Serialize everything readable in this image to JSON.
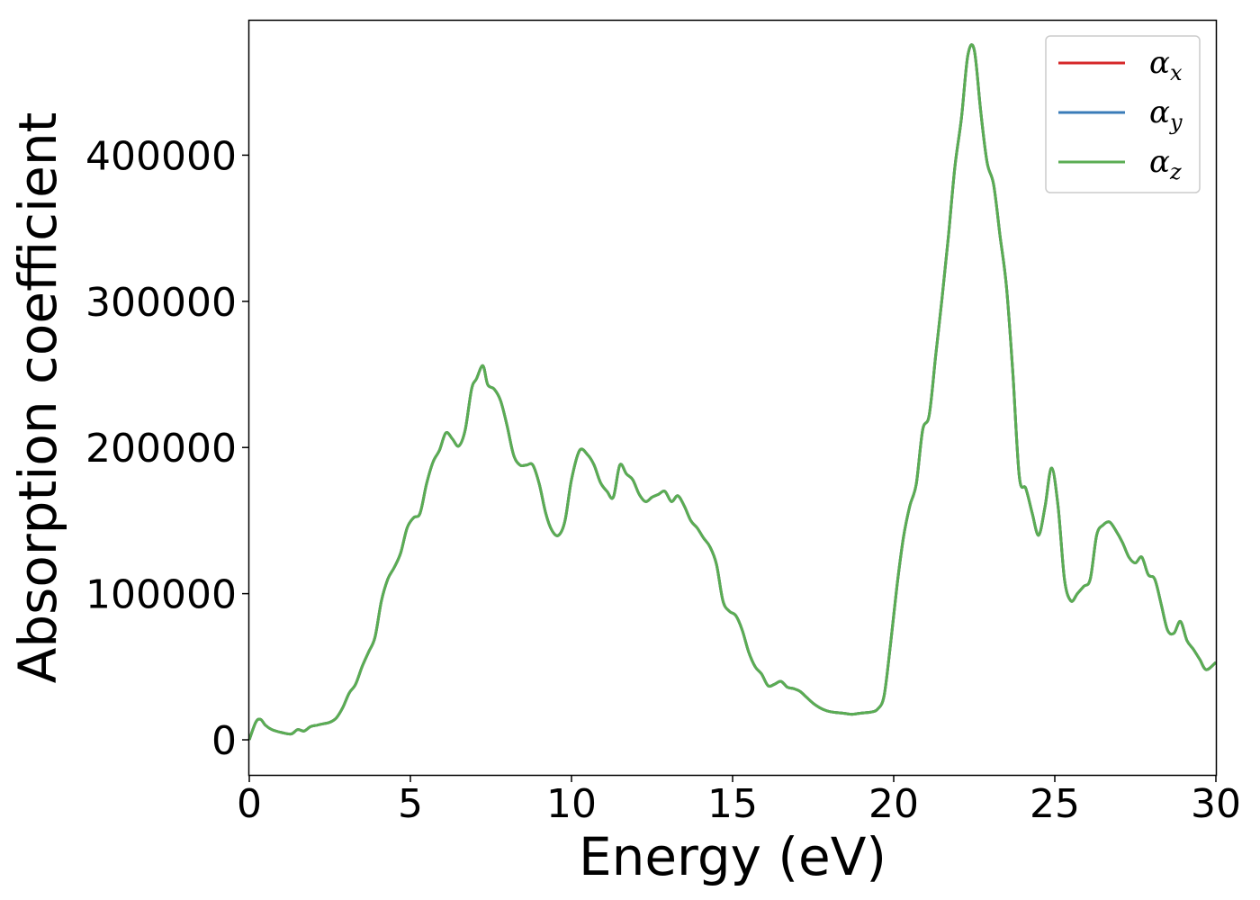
{
  "chart_data": {
    "type": "line",
    "title": "",
    "xlabel": "Energy (eV)",
    "ylabel": "Absorption coefficient",
    "xlim": [
      0,
      30
    ],
    "ylim": [
      -24000,
      492000
    ],
    "xticks": [
      0,
      5,
      10,
      15,
      20,
      25,
      30
    ],
    "yticks": [
      0,
      100000,
      200000,
      300000,
      400000
    ],
    "grid": false,
    "legend_position": "top-right",
    "colors": {
      "alpha_x": "#d62728",
      "alpha_y": "#3a7cb8",
      "alpha_z": "#5aad53"
    },
    "x": [
      0,
      0.2,
      0.35,
      0.5,
      0.7,
      1.0,
      1.3,
      1.5,
      1.7,
      1.9,
      2.1,
      2.3,
      2.5,
      2.7,
      2.9,
      3.1,
      3.3,
      3.5,
      3.7,
      3.9,
      4.1,
      4.3,
      4.5,
      4.7,
      4.9,
      5.1,
      5.3,
      5.5,
      5.7,
      5.9,
      6.1,
      6.3,
      6.5,
      6.7,
      6.9,
      7.05,
      7.25,
      7.4,
      7.6,
      7.8,
      8.0,
      8.2,
      8.4,
      8.6,
      8.8,
      9.0,
      9.2,
      9.4,
      9.6,
      9.8,
      10.0,
      10.25,
      10.5,
      10.7,
      10.9,
      11.1,
      11.3,
      11.5,
      11.7,
      11.9,
      12.1,
      12.3,
      12.5,
      12.7,
      12.9,
      13.1,
      13.3,
      13.5,
      13.7,
      13.9,
      14.1,
      14.3,
      14.5,
      14.7,
      14.9,
      15.1,
      15.3,
      15.5,
      15.7,
      15.9,
      16.1,
      16.3,
      16.5,
      16.7,
      16.9,
      17.1,
      17.3,
      17.5,
      17.7,
      17.9,
      18.1,
      18.3,
      18.5,
      18.7,
      18.9,
      19.1,
      19.3,
      19.5,
      19.7,
      19.9,
      20.1,
      20.3,
      20.5,
      20.7,
      20.9,
      21.1,
      21.3,
      21.5,
      21.7,
      21.9,
      22.1,
      22.3,
      22.5,
      22.7,
      22.9,
      23.1,
      23.3,
      23.5,
      23.7,
      23.9,
      24.1,
      24.3,
      24.5,
      24.7,
      24.9,
      25.1,
      25.3,
      25.5,
      25.7,
      25.9,
      26.1,
      26.3,
      26.5,
      26.7,
      26.9,
      27.1,
      27.3,
      27.5,
      27.7,
      27.9,
      28.1,
      28.3,
      28.5,
      28.7,
      28.9,
      29.1,
      29.3,
      29.5,
      29.7,
      30.0
    ],
    "series": [
      {
        "name": "αx",
        "symbol": "α",
        "sub": "x",
        "color": "#d62728",
        "values": [
          0,
          12000,
          14000,
          10000,
          7000,
          5000,
          4000,
          7000,
          6000,
          9000,
          10000,
          11000,
          12000,
          15000,
          22000,
          32000,
          38000,
          50000,
          60000,
          70000,
          95000,
          110000,
          118000,
          128000,
          145000,
          152000,
          155000,
          175000,
          190000,
          198000,
          210000,
          206000,
          201000,
          212000,
          240000,
          247000,
          256000,
          243000,
          240000,
          232000,
          215000,
          195000,
          188000,
          188000,
          188000,
          175000,
          155000,
          143000,
          140000,
          150000,
          178000,
          198000,
          195000,
          188000,
          176000,
          170000,
          166000,
          188000,
          182000,
          178000,
          168000,
          163000,
          166000,
          168000,
          170000,
          163000,
          167000,
          160000,
          150000,
          145000,
          138000,
          132000,
          120000,
          95000,
          88000,
          85000,
          75000,
          60000,
          50000,
          45000,
          37000,
          38000,
          40000,
          36000,
          35000,
          33000,
          29000,
          25000,
          22000,
          20000,
          19000,
          18500,
          18000,
          17500,
          18000,
          18500,
          19000,
          21000,
          30000,
          65000,
          105000,
          138000,
          160000,
          175000,
          212000,
          222000,
          262000,
          302000,
          345000,
          392000,
          425000,
          468000,
          472000,
          430000,
          395000,
          380000,
          345000,
          310000,
          250000,
          180000,
          172000,
          155000,
          140000,
          160000,
          186000,
          160000,
          110000,
          95000,
          100000,
          105000,
          110000,
          140000,
          147000,
          149000,
          143000,
          135000,
          125000,
          121000,
          125000,
          113000,
          110000,
          93000,
          75000,
          73000,
          81000,
          68000,
          62000,
          55000,
          48000,
          53000
        ]
      },
      {
        "name": "αy",
        "symbol": "α",
        "sub": "y",
        "color": "#3a7cb8",
        "values": [
          0,
          12000,
          14000,
          10000,
          7000,
          5000,
          4000,
          7000,
          6000,
          9000,
          10000,
          11000,
          12000,
          15000,
          22000,
          32000,
          38000,
          50000,
          60000,
          70000,
          95000,
          110000,
          118000,
          128000,
          145000,
          152000,
          155000,
          175000,
          190000,
          198000,
          210000,
          206000,
          201000,
          212000,
          240000,
          247000,
          256000,
          243000,
          240000,
          232000,
          215000,
          195000,
          188000,
          188000,
          188000,
          175000,
          155000,
          143000,
          140000,
          150000,
          178000,
          198000,
          195000,
          188000,
          176000,
          170000,
          166000,
          188000,
          182000,
          178000,
          168000,
          163000,
          166000,
          168000,
          170000,
          163000,
          167000,
          160000,
          150000,
          145000,
          138000,
          132000,
          120000,
          95000,
          88000,
          85000,
          75000,
          60000,
          50000,
          45000,
          37000,
          38000,
          40000,
          36000,
          35000,
          33000,
          29000,
          25000,
          22000,
          20000,
          19000,
          18500,
          18000,
          17500,
          18000,
          18500,
          19000,
          21000,
          30000,
          65000,
          105000,
          138000,
          160000,
          175000,
          212000,
          222000,
          262000,
          302000,
          345000,
          392000,
          425000,
          468000,
          472000,
          430000,
          395000,
          380000,
          345000,
          310000,
          250000,
          180000,
          172000,
          155000,
          140000,
          160000,
          186000,
          160000,
          110000,
          95000,
          100000,
          105000,
          110000,
          140000,
          147000,
          149000,
          143000,
          135000,
          125000,
          121000,
          125000,
          113000,
          110000,
          93000,
          75000,
          73000,
          81000,
          68000,
          62000,
          55000,
          48000,
          53000
        ]
      },
      {
        "name": "αz",
        "symbol": "α",
        "sub": "z",
        "color": "#5aad53",
        "values": [
          0,
          12000,
          14000,
          10000,
          7000,
          5000,
          4000,
          7000,
          6000,
          9000,
          10000,
          11000,
          12000,
          15000,
          22000,
          32000,
          38000,
          50000,
          60000,
          70000,
          95000,
          110000,
          118000,
          128000,
          145000,
          152000,
          155000,
          175000,
          190000,
          198000,
          210000,
          206000,
          201000,
          212000,
          240000,
          247000,
          256000,
          243000,
          240000,
          232000,
          215000,
          195000,
          188000,
          188000,
          188000,
          175000,
          155000,
          143000,
          140000,
          150000,
          178000,
          198000,
          195000,
          188000,
          176000,
          170000,
          166000,
          188000,
          182000,
          178000,
          168000,
          163000,
          166000,
          168000,
          170000,
          163000,
          167000,
          160000,
          150000,
          145000,
          138000,
          132000,
          120000,
          95000,
          88000,
          85000,
          75000,
          60000,
          50000,
          45000,
          37000,
          38000,
          40000,
          36000,
          35000,
          33000,
          29000,
          25000,
          22000,
          20000,
          19000,
          18500,
          18000,
          17500,
          18000,
          18500,
          19000,
          21000,
          30000,
          65000,
          105000,
          138000,
          160000,
          175000,
          212000,
          222000,
          262000,
          302000,
          345000,
          392000,
          425000,
          468000,
          472000,
          430000,
          395000,
          380000,
          345000,
          310000,
          250000,
          180000,
          172000,
          155000,
          140000,
          160000,
          186000,
          160000,
          110000,
          95000,
          100000,
          105000,
          110000,
          140000,
          147000,
          149000,
          143000,
          135000,
          125000,
          121000,
          125000,
          113000,
          110000,
          93000,
          75000,
          73000,
          81000,
          68000,
          62000,
          55000,
          48000,
          53000
        ]
      }
    ]
  }
}
